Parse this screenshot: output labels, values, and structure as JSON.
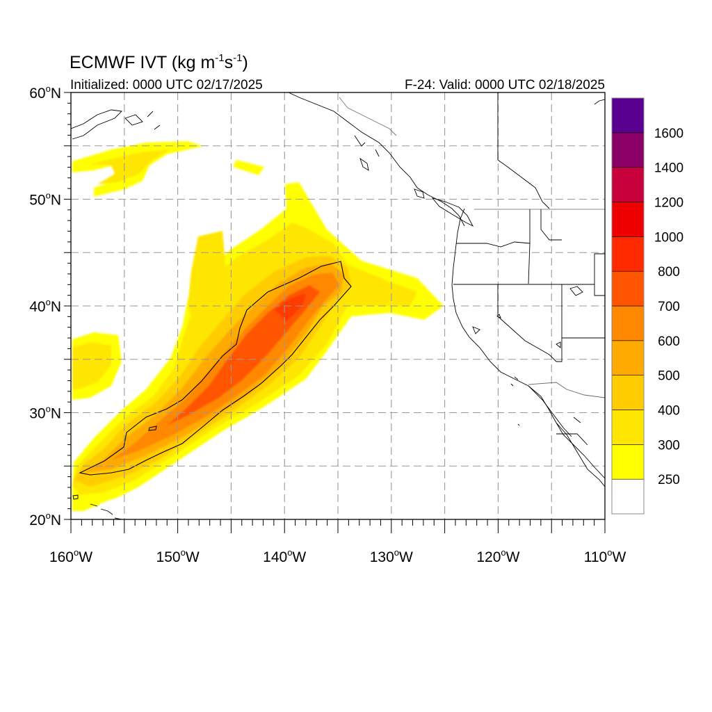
{
  "title": {
    "model": "ECMWF",
    "variable": "IVT",
    "units_open": "(kg m",
    "units_exp1": "-1",
    "units_mid": "s",
    "units_exp2": "-1",
    "units_close": ")"
  },
  "subtitle_left": "Initialized: 0000 UTC 02/17/2025",
  "subtitle_right": "F-24: Valid: 0000 UTC 02/18/2025",
  "map": {
    "lon_range": [
      -160,
      -110
    ],
    "lat_range": [
      20,
      60
    ],
    "grid": "dashed every 5 degrees",
    "contour_outline_level": 250
  },
  "lat_labels": [
    {
      "value": 60,
      "text": "60",
      "suffix": "N"
    },
    {
      "value": 50,
      "text": "50",
      "suffix": "N"
    },
    {
      "value": 40,
      "text": "40",
      "suffix": "N"
    },
    {
      "value": 30,
      "text": "30",
      "suffix": "N"
    },
    {
      "value": 20,
      "text": "20",
      "suffix": "N"
    }
  ],
  "lon_labels": [
    {
      "value": -160,
      "text": "160",
      "suffix": "W"
    },
    {
      "value": -150,
      "text": "150",
      "suffix": "W"
    },
    {
      "value": -140,
      "text": "140",
      "suffix": "W"
    },
    {
      "value": -130,
      "text": "130",
      "suffix": "W"
    },
    {
      "value": -120,
      "text": "120",
      "suffix": "W"
    },
    {
      "value": -110,
      "text": "110",
      "suffix": "W"
    }
  ],
  "colorbar": {
    "levels": [
      250,
      300,
      400,
      500,
      600,
      700,
      800,
      1000,
      1200,
      1400,
      1600
    ],
    "labels": [
      "250",
      "300",
      "400",
      "500",
      "600",
      "700",
      "800",
      "1000",
      "1200",
      "1400",
      "1600"
    ],
    "colors": [
      "#ffffff",
      "#ffff00",
      "#ffe600",
      "#ffcc00",
      "#ffaa00",
      "#ff8800",
      "#ff5500",
      "#ff2a00",
      "#ee0000",
      "#c8003c",
      "#8a0066",
      "#5a0090"
    ]
  },
  "colors": {
    "grid": "#999999",
    "coast": "#000000",
    "border": "#000000"
  }
}
